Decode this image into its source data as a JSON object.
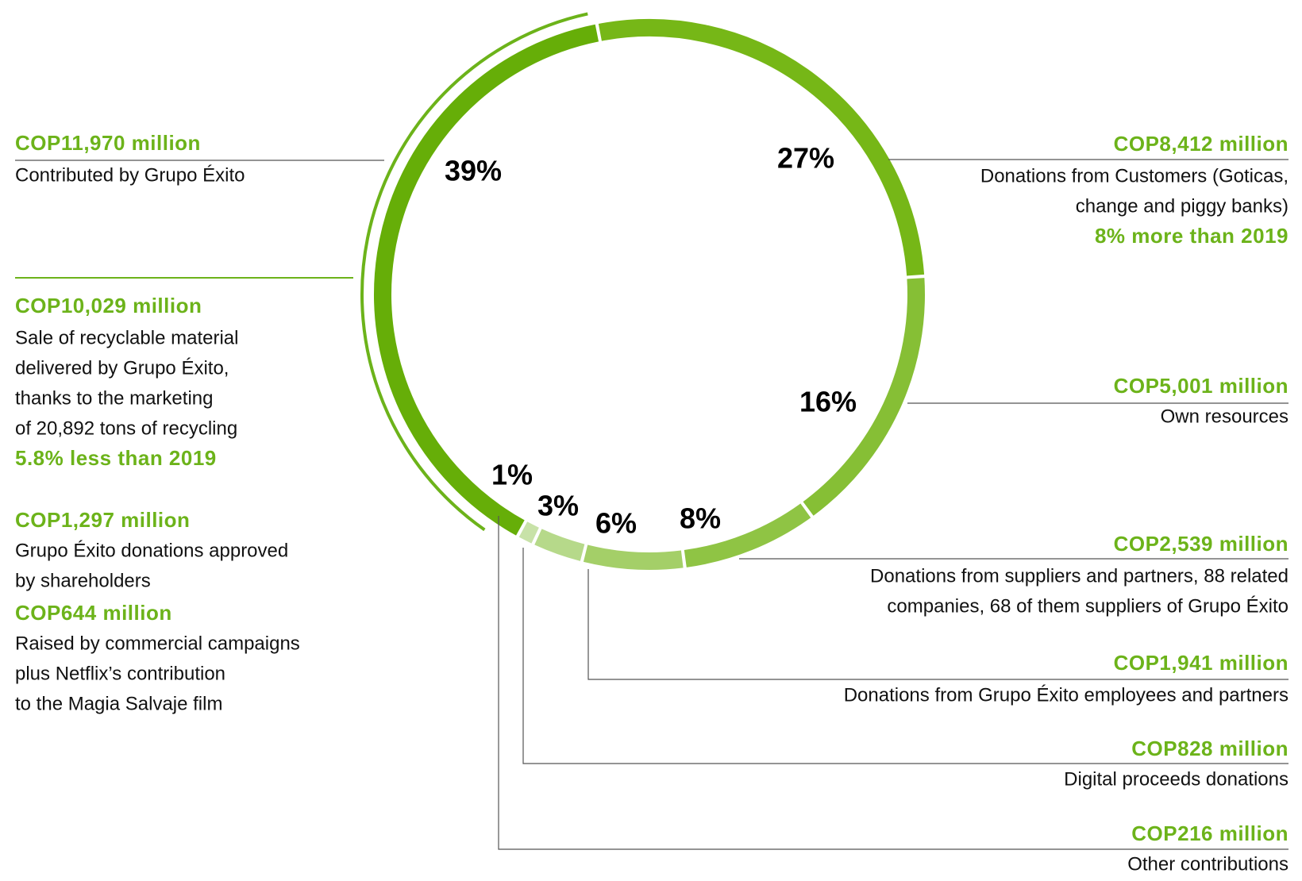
{
  "chart_data": {
    "type": "donut",
    "values": [
      27,
      16,
      8,
      6,
      3,
      1,
      39
    ],
    "value_labels": [
      "27%",
      "16%",
      "8%",
      "6%",
      "3%",
      "1%",
      "39%"
    ],
    "colors": [
      "#76b717",
      "#86bf35",
      "#8fc444",
      "#a4cf68",
      "#b6d98a",
      "#c8e2a8",
      "#66ae08"
    ],
    "segments": [
      {
        "amount": "COP8,412 million",
        "description": [
          "Donations from Customers (Goticas,",
          "change and piggy banks)"
        ],
        "note": "8% more than 2019"
      },
      {
        "amount": "COP5,001 million",
        "description": [
          "Own resources"
        ]
      },
      {
        "amount": "COP2,539 million",
        "description": [
          "Donations from suppliers and partners, 88 related",
          "companies, 68 of them suppliers of Grupo Éxito"
        ]
      },
      {
        "amount": "COP1,941 million",
        "description": [
          "Donations from Grupo Éxito employees and partners"
        ]
      },
      {
        "amount": "COP828 million",
        "description": [
          "Digital proceeds donations"
        ]
      },
      {
        "amount": "COP216 million",
        "description": [
          "Other contributions"
        ]
      },
      {
        "amount": "COP11,970 million",
        "description": [
          "Contributed by Grupo Éxito"
        ]
      }
    ],
    "breakdown": [
      {
        "amount": "COP10,029 million",
        "description": [
          "Sale of recyclable material",
          "delivered by Grupo Éxito,",
          "thanks to the marketing",
          "of 20,892 tons of recycling"
        ],
        "note": "5.8% less than 2019"
      },
      {
        "amount": "COP1,297 million",
        "description": [
          "Grupo Éxito donations approved",
          "by shareholders"
        ]
      },
      {
        "amount": "COP644 million",
        "description": [
          "Raised by commercial campaigns",
          "plus Netflix’s contribution",
          "to the Magia Salvaje film"
        ]
      }
    ]
  }
}
